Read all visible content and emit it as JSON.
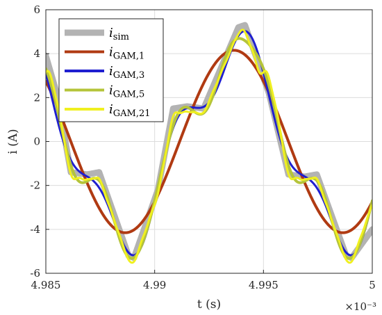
{
  "chart_data": {
    "type": "line",
    "xlabel": "t (s)",
    "ylabel": "i (A)",
    "x_multiplier": "×10⁻³",
    "xlim": [
      4.985,
      5.0
    ],
    "ylim": [
      -6,
      6
    ],
    "grid": true,
    "legend_position": "top-left",
    "xticks": [
      "4.985",
      "4.99",
      "4.995",
      "5"
    ],
    "yticks": [
      "6",
      "4",
      "2",
      "0",
      "-2",
      "-4",
      "-6"
    ],
    "series": [
      {
        "name": "i_sim",
        "label_main": "i",
        "label_sub": "sim",
        "color": "#b3b3b3",
        "x": [
          4.985,
          4.9855,
          4.98615,
          4.9869,
          4.98745,
          4.9888,
          4.98905,
          4.99015,
          4.99085,
          4.9915,
          4.99225,
          4.99385,
          4.99415,
          4.99525,
          4.99615,
          4.9969,
          4.99745,
          4.9988,
          4.99905,
          5.0
        ],
        "y": [
          3.9,
          2.2,
          -1.4,
          -1.5,
          -1.4,
          -5.2,
          -5.3,
          -2.2,
          1.5,
          1.6,
          1.5,
          5.2,
          5.3,
          2.2,
          -1.5,
          -1.6,
          -1.5,
          -5.2,
          -5.3,
          -4.0
        ]
      },
      {
        "name": "i_GAM,1",
        "label_main": "i",
        "label_sub": "GAM,1",
        "color": "#b03a12",
        "amp": 4.35,
        "peak": 4.99398,
        "harmonics": 1
      },
      {
        "name": "i_GAM,3",
        "label_main": "i",
        "label_sub": "GAM,3",
        "color": "#1f1fd0",
        "amp": 4.35,
        "peak": 4.99398,
        "harmonics": 3
      },
      {
        "name": "i_GAM,5",
        "label_main": "i",
        "label_sub": "GAM,5",
        "color": "#b5c43a",
        "amp": 4.35,
        "peak": 4.99398,
        "harmonics": 5
      },
      {
        "name": "i_GAM,21",
        "label_main": "i",
        "label_sub": "GAM,21",
        "color": "#f0f020",
        "amp": 4.35,
        "peak": 4.99398,
        "harmonics": 21
      }
    ]
  }
}
